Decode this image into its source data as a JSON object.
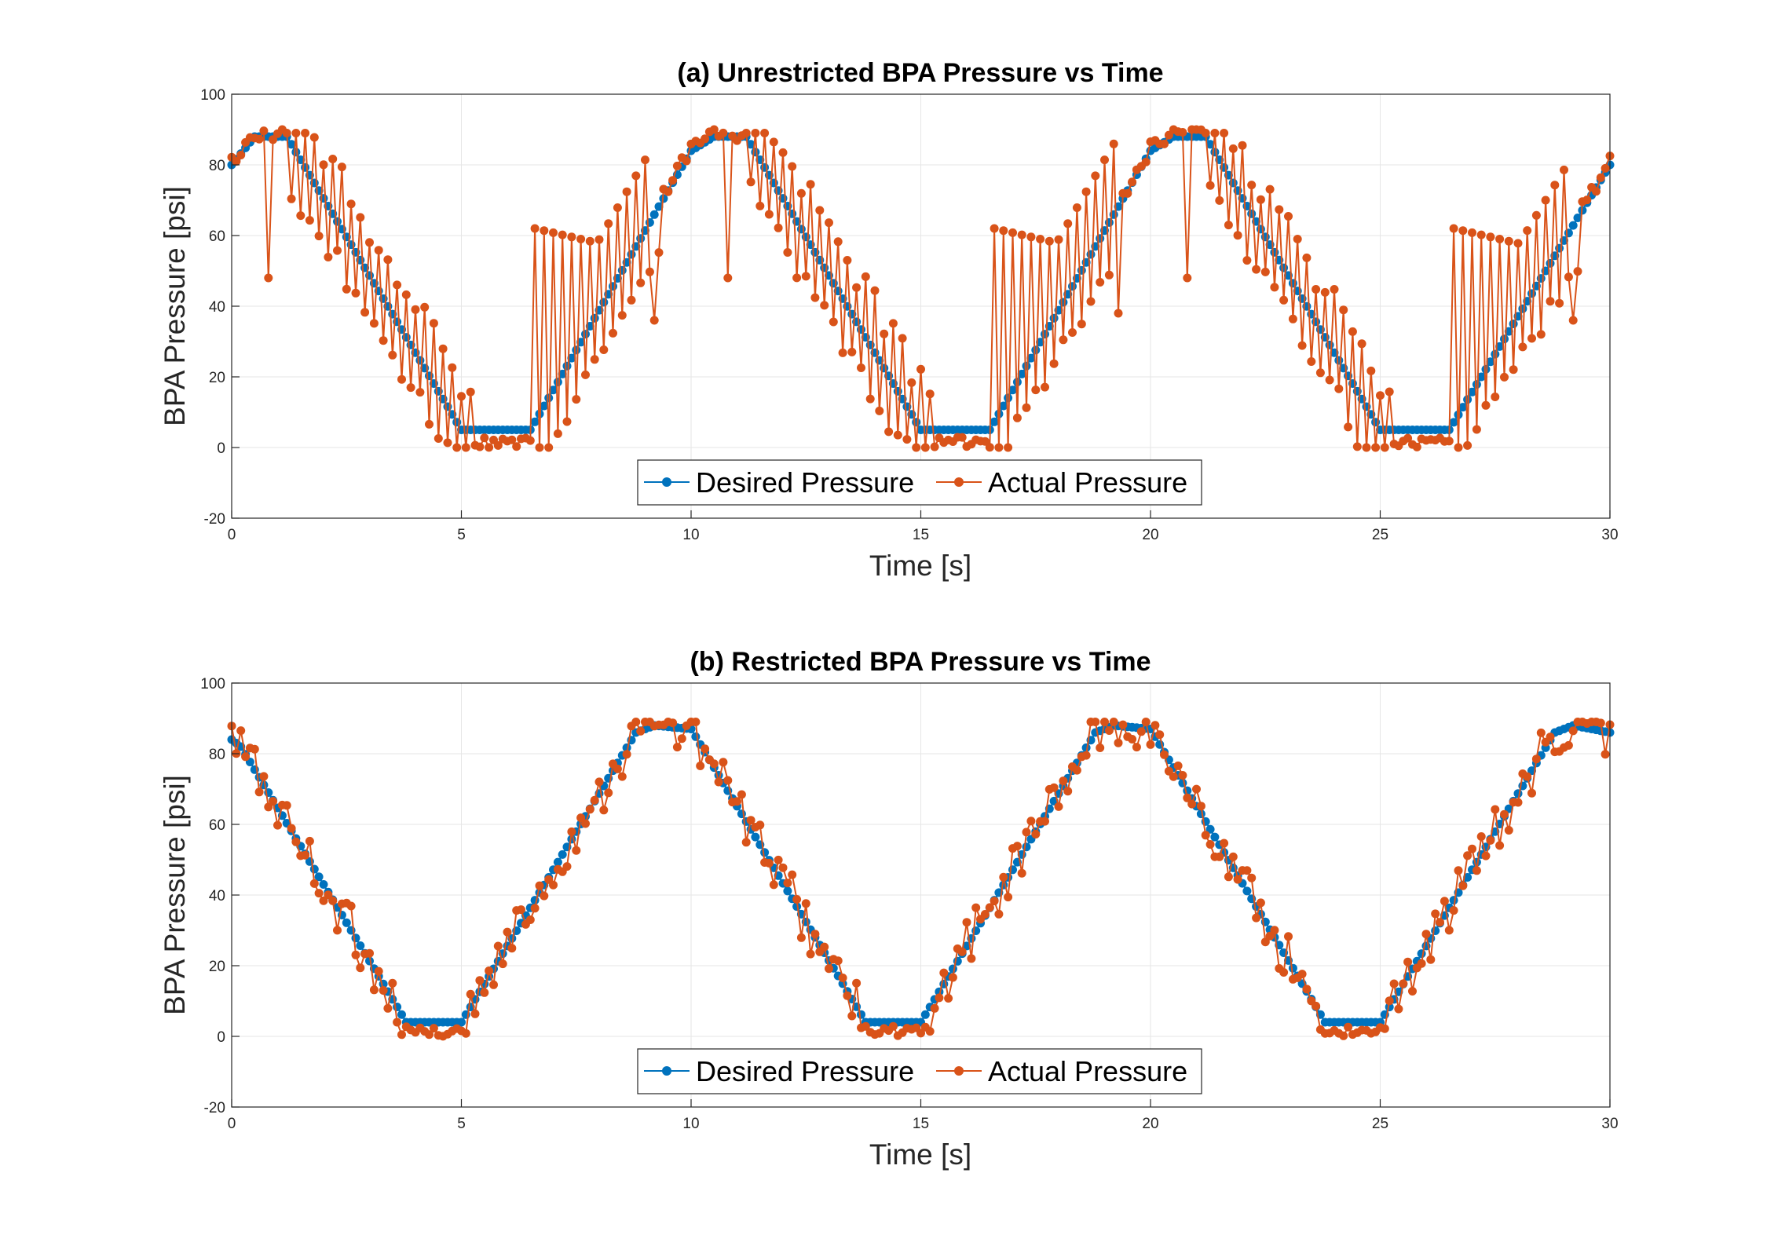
{
  "chart_data": [
    {
      "type": "line",
      "title": "(a) Unrestricted BPA Pressure vs Time",
      "xlabel": "Time [s]",
      "ylabel": "BPA Pressure [psi]",
      "xlim": [
        0,
        30
      ],
      "ylim": [
        -20,
        100
      ],
      "xticks": [
        0,
        5,
        10,
        15,
        20,
        25,
        30
      ],
      "yticks": [
        -20,
        0,
        20,
        40,
        60,
        80,
        100
      ],
      "grid": true,
      "legend": "bottom-center",
      "sample_interval_s": 0.1,
      "series": [
        {
          "name": "Desired Pressure",
          "color": "#0072BD",
          "marker": "circle",
          "keyframes": [
            [
              0,
              80
            ],
            [
              0.5,
              88
            ],
            [
              1.2,
              88
            ],
            [
              5,
              5
            ],
            [
              6.5,
              5
            ],
            [
              10,
              84
            ],
            [
              10.5,
              88
            ],
            [
              11.2,
              88
            ],
            [
              15,
              5
            ],
            [
              16.5,
              5
            ],
            [
              20,
              84
            ],
            [
              20.5,
              88
            ],
            [
              21.2,
              88
            ],
            [
              25,
              5
            ],
            [
              26.5,
              5
            ],
            [
              30,
              80
            ]
          ]
        },
        {
          "name": "Actual Pressure",
          "color": "#D95319",
          "marker": "circle",
          "behavior": "sawtooth-hold",
          "falling_segments": [
            [
              1.2,
              5.2
            ],
            [
              11.2,
              15.2
            ],
            [
              21.2,
              25.2
            ]
          ],
          "rising_segments": [
            [
              6.6,
              9.3
            ],
            [
              16.6,
              19.3
            ],
            [
              26.6,
              29.3
            ]
          ],
          "plateau_low": 0,
          "plateau_high": 89,
          "outliers": [
            [
              0.8,
              48
            ],
            [
              9.2,
              36
            ],
            [
              10.8,
              48
            ],
            [
              19.3,
              38
            ],
            [
              20.8,
              48
            ],
            [
              29.2,
              36
            ]
          ]
        }
      ]
    },
    {
      "type": "line",
      "title": "(b) Restricted BPA Pressure vs Time",
      "xlabel": "Time [s]",
      "ylabel": "BPA Pressure [psi]",
      "xlim": [
        0,
        30
      ],
      "ylim": [
        -20,
        100
      ],
      "xticks": [
        0,
        5,
        10,
        15,
        20,
        25,
        30
      ],
      "yticks": [
        -20,
        0,
        20,
        40,
        60,
        80,
        100
      ],
      "grid": true,
      "legend": "bottom-center",
      "sample_interval_s": 0.1,
      "series": [
        {
          "name": "Desired Pressure",
          "color": "#0072BD",
          "marker": "circle",
          "keyframes": [
            [
              0,
              84
            ],
            [
              0.2,
              82
            ],
            [
              3.8,
              4
            ],
            [
              5,
              4
            ],
            [
              8.8,
              86
            ],
            [
              9.2,
              88
            ],
            [
              10,
              87
            ],
            [
              13.8,
              4
            ],
            [
              15,
              4
            ],
            [
              18.8,
              86
            ],
            [
              19.2,
              88
            ],
            [
              20,
              87
            ],
            [
              23.8,
              4
            ],
            [
              25,
              4
            ],
            [
              28.8,
              86
            ],
            [
              29.2,
              88
            ],
            [
              30,
              86
            ]
          ]
        },
        {
          "name": "Actual Pressure",
          "color": "#D95319",
          "marker": "circle",
          "behavior": "noisy-tracking",
          "noise_amplitude": 7,
          "low_floor": 0
        }
      ]
    }
  ]
}
